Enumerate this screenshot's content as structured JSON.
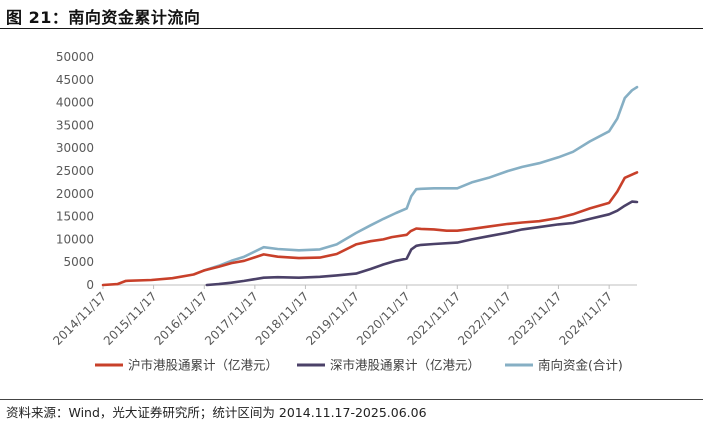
{
  "header": {
    "title": "图 21：南向资金累计流向"
  },
  "footer": {
    "source": "资料来源：Wind，光大证券研究所；统计区间为 2014.11.17-2025.06.06"
  },
  "colors": {
    "hu": "#c8402a",
    "shen": "#4b4168",
    "total": "#86afc4",
    "axis": "#bfbfbf",
    "text": "#595959"
  },
  "chart_data": {
    "type": "line",
    "title": "",
    "xlabel": "",
    "ylabel": "",
    "ylim": [
      0,
      50000
    ],
    "yticks": [
      0,
      5000,
      10000,
      15000,
      20000,
      25000,
      30000,
      35000,
      40000,
      45000,
      50000
    ],
    "xticks": [
      "2014/11/17",
      "2015/11/17",
      "2016/11/17",
      "2017/11/17",
      "2018/11/17",
      "2019/11/17",
      "2020/11/17",
      "2021/11/17",
      "2022/11/17",
      "2023/11/17",
      "2024/11/17"
    ],
    "x_range": [
      "2014-11-17",
      "2025-06-06"
    ],
    "legend_position": "bottom",
    "series": [
      {
        "name": "沪市港股通累计（亿港元）",
        "color_key": "hu",
        "points": [
          [
            "2014-11-17",
            0
          ],
          [
            "2015-03-01",
            200
          ],
          [
            "2015-05-01",
            900
          ],
          [
            "2015-11-01",
            1100
          ],
          [
            "2016-04-01",
            1500
          ],
          [
            "2016-09-01",
            2300
          ],
          [
            "2016-11-17",
            3200
          ],
          [
            "2017-03-01",
            4000
          ],
          [
            "2017-06-01",
            4800
          ],
          [
            "2017-09-01",
            5300
          ],
          [
            "2018-01-20",
            6700
          ],
          [
            "2018-05-01",
            6200
          ],
          [
            "2018-10-01",
            5900
          ],
          [
            "2019-03-01",
            6000
          ],
          [
            "2019-07-01",
            6800
          ],
          [
            "2019-11-17",
            8900
          ],
          [
            "2020-03-01",
            9600
          ],
          [
            "2020-06-01",
            10000
          ],
          [
            "2020-08-01",
            10500
          ],
          [
            "2020-11-17",
            11000
          ],
          [
            "2020-12-15",
            11800
          ],
          [
            "2021-01-25",
            12400
          ],
          [
            "2021-03-01",
            12300
          ],
          [
            "2021-06-01",
            12200
          ],
          [
            "2021-09-01",
            11900
          ],
          [
            "2021-11-17",
            11900
          ],
          [
            "2022-03-01",
            12300
          ],
          [
            "2022-07-01",
            12800
          ],
          [
            "2022-11-17",
            13400
          ],
          [
            "2023-03-01",
            13700
          ],
          [
            "2023-07-01",
            14000
          ],
          [
            "2023-11-17",
            14700
          ],
          [
            "2024-03-01",
            15500
          ],
          [
            "2024-07-01",
            16800
          ],
          [
            "2024-11-17",
            18000
          ],
          [
            "2025-01-15",
            20500
          ],
          [
            "2025-03-10",
            23500
          ],
          [
            "2025-06-06",
            24700
          ]
        ]
      },
      {
        "name": "深市港股通累计（亿港元）",
        "color_key": "shen",
        "points": [
          [
            "2016-12-05",
            0
          ],
          [
            "2017-03-01",
            200
          ],
          [
            "2017-06-01",
            500
          ],
          [
            "2017-09-01",
            900
          ],
          [
            "2018-01-20",
            1600
          ],
          [
            "2018-05-01",
            1700
          ],
          [
            "2018-10-01",
            1600
          ],
          [
            "2019-03-01",
            1800
          ],
          [
            "2019-07-01",
            2100
          ],
          [
            "2019-11-17",
            2500
          ],
          [
            "2020-03-01",
            3500
          ],
          [
            "2020-06-01",
            4500
          ],
          [
            "2020-09-01",
            5300
          ],
          [
            "2020-11-17",
            5800
          ],
          [
            "2020-12-20",
            7800
          ],
          [
            "2021-01-25",
            8600
          ],
          [
            "2021-03-01",
            8800
          ],
          [
            "2021-06-01",
            9000
          ],
          [
            "2021-11-17",
            9300
          ],
          [
            "2022-03-01",
            10000
          ],
          [
            "2022-07-01",
            10700
          ],
          [
            "2022-11-17",
            11500
          ],
          [
            "2023-03-01",
            12200
          ],
          [
            "2023-07-01",
            12700
          ],
          [
            "2023-11-17",
            13300
          ],
          [
            "2024-03-01",
            13600
          ],
          [
            "2024-07-01",
            14500
          ],
          [
            "2024-11-17",
            15500
          ],
          [
            "2025-01-15",
            16300
          ],
          [
            "2025-03-10",
            17400
          ],
          [
            "2025-05-01",
            18300
          ],
          [
            "2025-06-06",
            18200
          ]
        ]
      },
      {
        "name": "南向资金(合计)",
        "color_key": "total",
        "points": [
          [
            "2016-11-17",
            3200
          ],
          [
            "2017-03-01",
            4200
          ],
          [
            "2017-06-01",
            5300
          ],
          [
            "2017-09-01",
            6200
          ],
          [
            "2018-01-20",
            8300
          ],
          [
            "2018-05-01",
            7900
          ],
          [
            "2018-10-01",
            7600
          ],
          [
            "2019-03-01",
            7800
          ],
          [
            "2019-07-01",
            8900
          ],
          [
            "2019-11-17",
            11400
          ],
          [
            "2020-03-01",
            13100
          ],
          [
            "2020-06-01",
            14500
          ],
          [
            "2020-09-01",
            15800
          ],
          [
            "2020-11-17",
            16800
          ],
          [
            "2020-12-20",
            19500
          ],
          [
            "2021-01-25",
            21000
          ],
          [
            "2021-03-01",
            21100
          ],
          [
            "2021-06-01",
            21200
          ],
          [
            "2021-11-17",
            21200
          ],
          [
            "2022-03-01",
            22500
          ],
          [
            "2022-07-01",
            23500
          ],
          [
            "2022-11-17",
            25000
          ],
          [
            "2023-03-01",
            25900
          ],
          [
            "2023-07-01",
            26700
          ],
          [
            "2023-11-17",
            28000
          ],
          [
            "2024-03-01",
            29200
          ],
          [
            "2024-07-01",
            31500
          ],
          [
            "2024-11-17",
            33700
          ],
          [
            "2025-01-15",
            36500
          ],
          [
            "2025-03-10",
            41000
          ],
          [
            "2025-05-01",
            42700
          ],
          [
            "2025-06-06",
            43400
          ]
        ]
      }
    ]
  }
}
